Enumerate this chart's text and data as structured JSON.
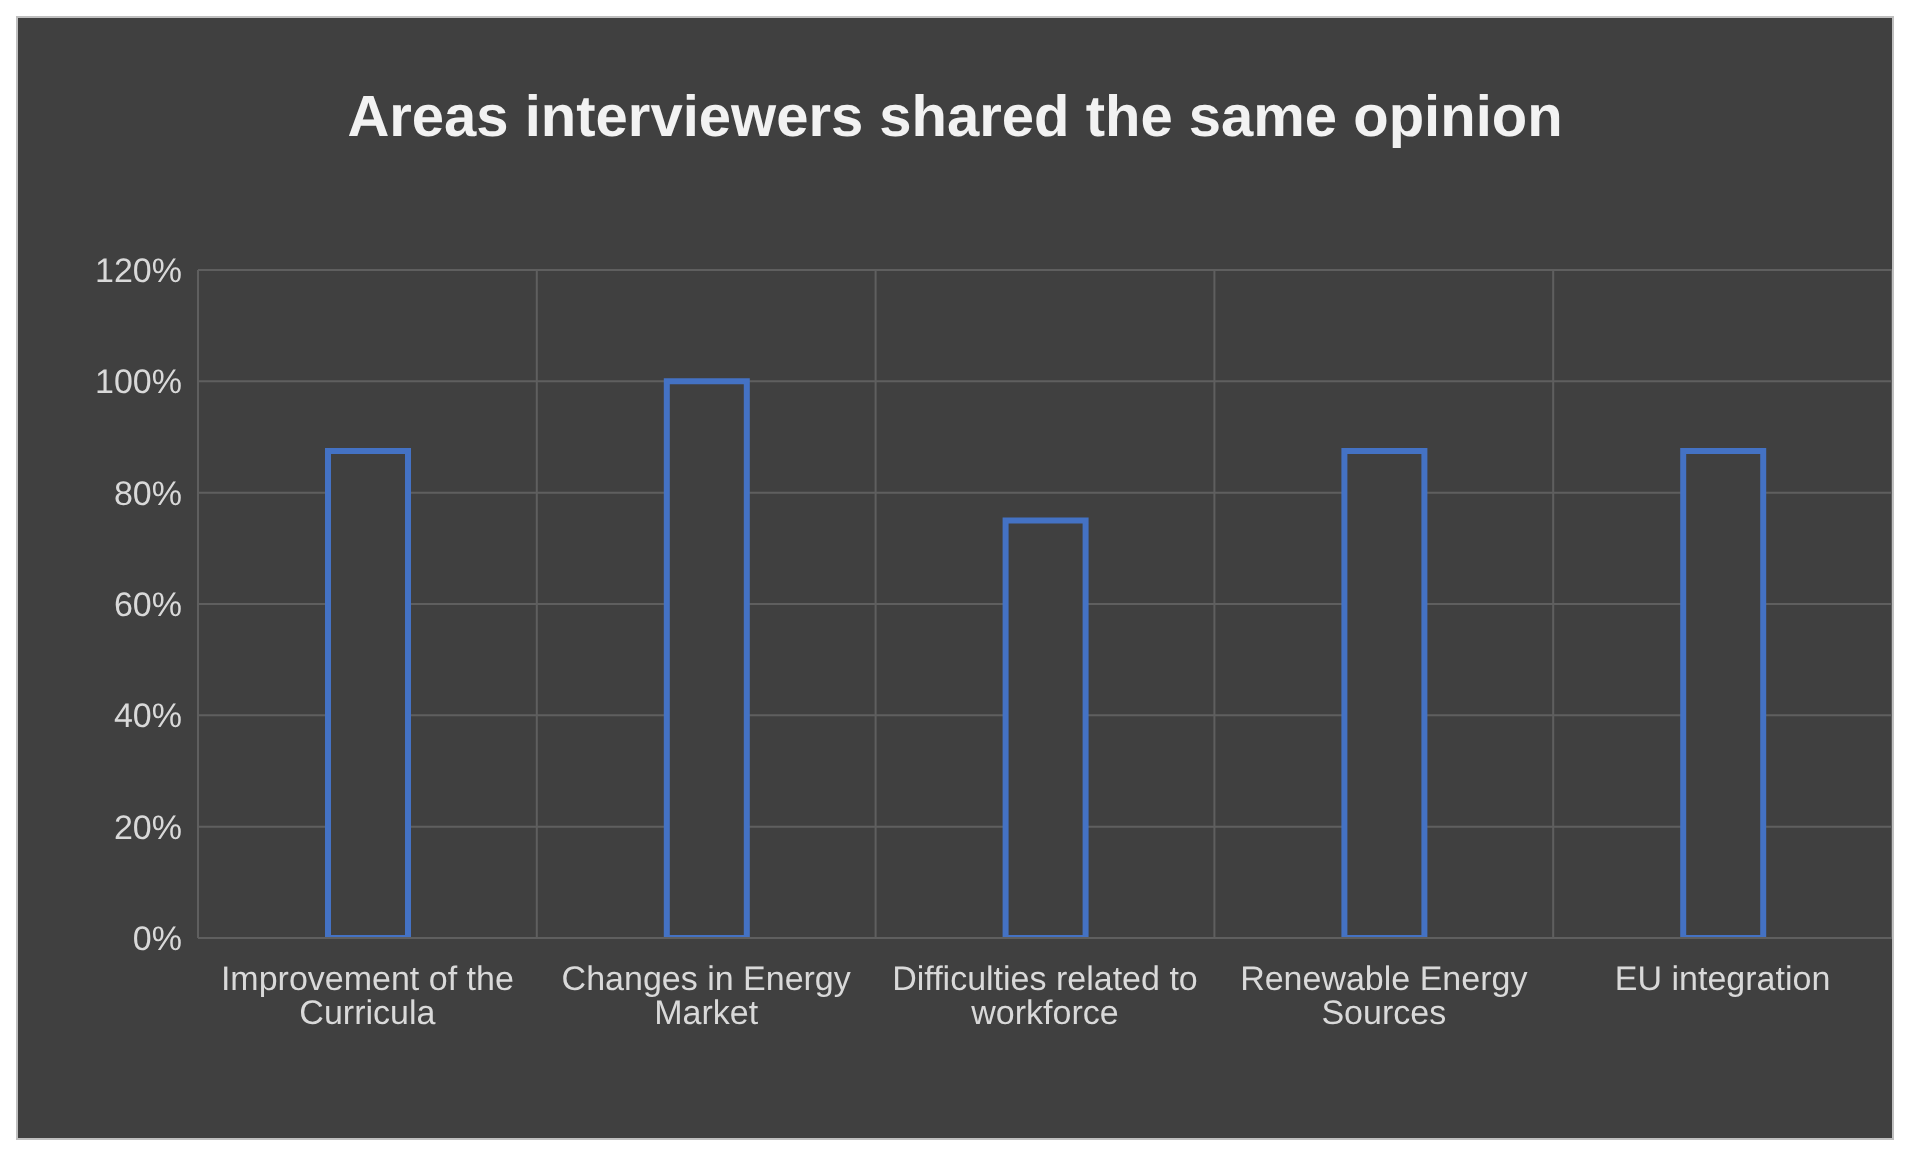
{
  "chart_data": {
    "type": "bar",
    "title": "Areas interviewers shared the same opinion",
    "categories": [
      "Improvement of the Curricula",
      "Changes in Energy Market",
      "Difficulties related to workforce",
      "Renewable Energy Sources",
      "EU integration"
    ],
    "values": [
      87.5,
      100,
      75,
      87.5,
      87.5
    ],
    "color": "#4472c4",
    "ylim": [
      0,
      120
    ],
    "yticks": [
      {
        "value": 0,
        "label": "0%"
      },
      {
        "value": 20,
        "label": "20%"
      },
      {
        "value": 40,
        "label": "40%"
      },
      {
        "value": 60,
        "label": "60%"
      },
      {
        "value": 80,
        "label": "80%"
      },
      {
        "value": 100,
        "label": "100%"
      },
      {
        "value": 120,
        "label": "120%"
      }
    ],
    "grid": true,
    "legend": false
  }
}
